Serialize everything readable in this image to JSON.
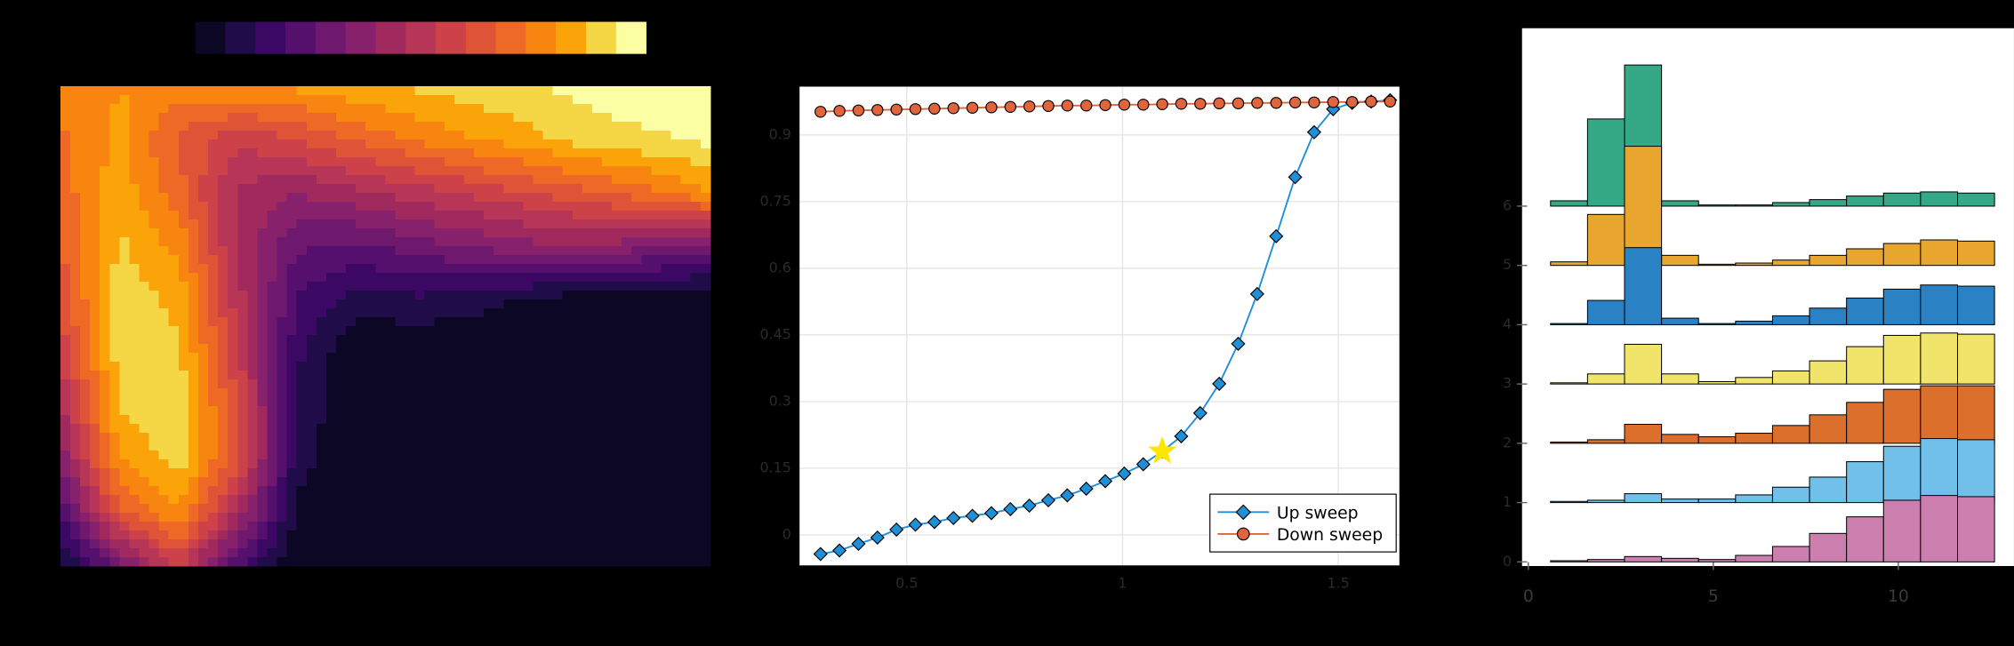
{
  "chart_data": [
    {
      "type": "contour",
      "x": [
        0,
        1,
        2,
        3,
        4,
        5,
        6,
        7,
        8,
        9,
        10,
        11
      ],
      "y": [
        9,
        8,
        7,
        6,
        5,
        4,
        3,
        2,
        1,
        0
      ],
      "z": [
        [
          0.75,
          0.8,
          0.78,
          0.8,
          0.82,
          0.85,
          0.88,
          0.9,
          0.93,
          0.96,
          0.98,
          1.0
        ],
        [
          0.72,
          0.82,
          0.65,
          0.55,
          0.6,
          0.68,
          0.74,
          0.8,
          0.85,
          0.9,
          0.92,
          0.95
        ],
        [
          0.7,
          0.84,
          0.7,
          0.45,
          0.4,
          0.45,
          0.5,
          0.55,
          0.6,
          0.65,
          0.72,
          0.8
        ],
        [
          0.66,
          0.88,
          0.78,
          0.45,
          0.28,
          0.25,
          0.3,
          0.34,
          0.38,
          0.4,
          0.35,
          0.3
        ],
        [
          0.62,
          0.9,
          0.85,
          0.5,
          0.2,
          0.1,
          0.12,
          0.1,
          0.05,
          0.02,
          0.0,
          0.0
        ],
        [
          0.55,
          0.9,
          0.88,
          0.55,
          0.15,
          0.0,
          0.0,
          0.0,
          0.0,
          0.0,
          0.0,
          0.0
        ],
        [
          0.45,
          0.88,
          0.92,
          0.6,
          0.12,
          0.0,
          0.0,
          0.0,
          0.0,
          0.0,
          0.0,
          0.0
        ],
        [
          0.35,
          0.8,
          0.9,
          0.62,
          0.1,
          0.0,
          0.0,
          0.0,
          0.0,
          0.0,
          0.0,
          0.0
        ],
        [
          0.2,
          0.65,
          0.8,
          0.45,
          0.05,
          0.0,
          0.0,
          0.0,
          0.0,
          0.0,
          0.0,
          0.0
        ],
        [
          0.05,
          0.3,
          0.55,
          0.2,
          0.0,
          0.0,
          0.0,
          0.0,
          0.0,
          0.0,
          0.0,
          0.0
        ]
      ],
      "xlim": [
        0,
        11
      ],
      "ylim": [
        0,
        9
      ],
      "zlim": [
        0,
        1
      ],
      "colors": [
        "#0b0724",
        "#1f0c48",
        "#3b0964",
        "#550f6d",
        "#6e186e",
        "#87216b",
        "#a0295e",
        "#b73556",
        "#cc4248",
        "#df5337",
        "#ed6925",
        "#f8850f",
        "#fba40a",
        "#f5d745",
        "#fcfea4"
      ]
    },
    {
      "type": "line",
      "x": [
        0.3,
        0.344,
        0.388,
        0.432,
        0.476,
        0.52,
        0.564,
        0.608,
        0.652,
        0.696,
        0.74,
        0.784,
        0.828,
        0.872,
        0.916,
        0.96,
        1.004,
        1.048,
        1.092,
        1.136,
        1.18,
        1.224,
        1.268,
        1.312,
        1.356,
        1.4,
        1.444,
        1.488,
        1.532,
        1.576,
        1.62
      ],
      "series": [
        {
          "name": "Up sweep",
          "color": "#1f8fd8",
          "marker": "diamond",
          "values": [
            -0.043,
            -0.035,
            -0.02,
            -0.006,
            0.012,
            0.023,
            0.029,
            0.038,
            0.043,
            0.049,
            0.058,
            0.066,
            0.078,
            0.089,
            0.104,
            0.121,
            0.138,
            0.159,
            0.188,
            0.222,
            0.274,
            0.34,
            0.43,
            0.542,
            0.672,
            0.805,
            0.906,
            0.958,
            0.972,
            0.975,
            0.978
          ]
        },
        {
          "name": "Down sweep",
          "color": "#e0643c",
          "marker": "circle",
          "values": [
            0.952,
            0.954,
            0.955,
            0.956,
            0.957,
            0.958,
            0.959,
            0.96,
            0.961,
            0.962,
            0.963,
            0.964,
            0.965,
            0.966,
            0.966,
            0.967,
            0.968,
            0.968,
            0.969,
            0.97,
            0.97,
            0.971,
            0.971,
            0.972,
            0.972,
            0.973,
            0.973,
            0.974,
            0.974,
            0.975,
            0.975
          ]
        }
      ],
      "highlight": {
        "x": 1.092,
        "y": 0.188,
        "color": "#ffe600",
        "marker": "star"
      },
      "xlim": [
        0.25,
        1.643
      ],
      "ylim": [
        -0.07,
        1.01
      ],
      "xticks": [
        0.5,
        1,
        1.5
      ],
      "yticks": [
        0,
        0.15,
        0.3,
        0.45,
        0.6,
        0.75,
        0.9
      ],
      "grid": true,
      "legend": "bottom right"
    },
    {
      "type": "histogram",
      "bins": [
        0.6,
        1.6,
        2.6,
        3.6,
        4.6,
        5.6,
        6.6,
        7.6,
        8.6,
        9.6,
        10.6,
        11.6,
        12.6
      ],
      "series": [
        {
          "color": "#35a886",
          "values": [
            0.09,
            1.47,
            2.38,
            0.09,
            0.02,
            0.02,
            0.06,
            0.11,
            0.17,
            0.22,
            0.24,
            0.22
          ]
        },
        {
          "color": "#e8a62e",
          "values": [
            0.06,
            0.86,
            2.01,
            0.17,
            0.02,
            0.04,
            0.09,
            0.17,
            0.28,
            0.37,
            0.43,
            0.41
          ]
        },
        {
          "color": "#2a81c4",
          "values": [
            0.02,
            0.41,
            1.3,
            0.11,
            0.02,
            0.06,
            0.15,
            0.28,
            0.45,
            0.6,
            0.67,
            0.65
          ]
        },
        {
          "color": "#f1e46a",
          "values": [
            0.02,
            0.17,
            0.67,
            0.17,
            0.04,
            0.11,
            0.22,
            0.39,
            0.63,
            0.82,
            0.86,
            0.84
          ]
        },
        {
          "color": "#dc6f2c",
          "values": [
            0.02,
            0.06,
            0.32,
            0.15,
            0.11,
            0.17,
            0.3,
            0.48,
            0.69,
            0.91,
            0.97,
            0.97
          ]
        },
        {
          "color": "#70c0ea",
          "values": [
            0.02,
            0.04,
            0.15,
            0.06,
            0.06,
            0.13,
            0.26,
            0.43,
            0.69,
            0.95,
            1.08,
            1.06
          ]
        },
        {
          "color": "#cc7fae",
          "values": [
            0.02,
            0.04,
            0.09,
            0.06,
            0.04,
            0.11,
            0.26,
            0.48,
            0.76,
            1.04,
            1.12,
            1.1
          ]
        }
      ],
      "xlim": [
        -0.17,
        13.125
      ],
      "ylim": [
        -0.07,
        9.0
      ],
      "xticks": [
        0,
        5,
        10
      ],
      "yticks": [
        0,
        1,
        2,
        3,
        4,
        5,
        6
      ]
    }
  ]
}
